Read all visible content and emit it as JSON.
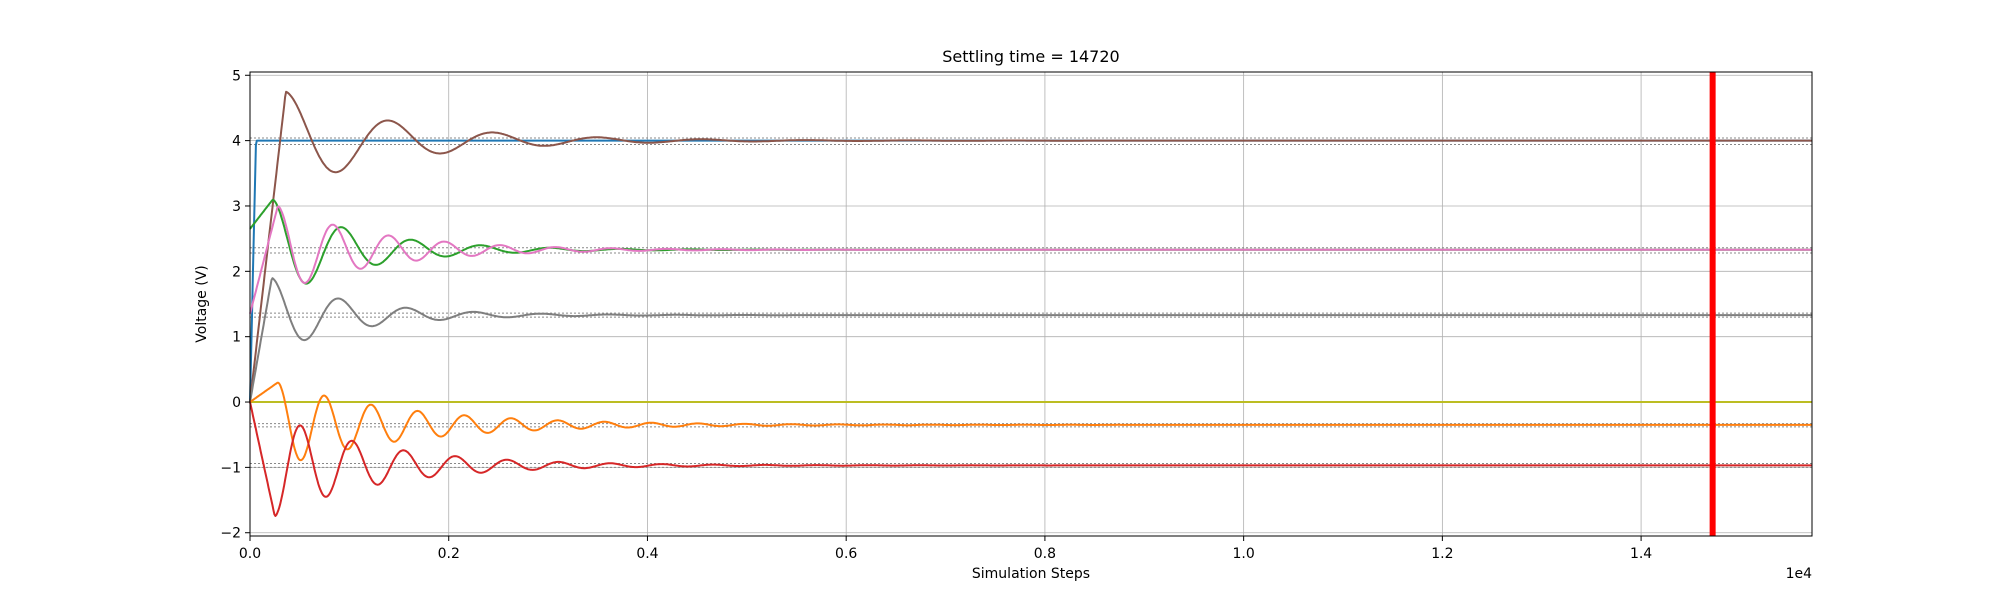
{
  "chart_data": {
    "type": "line",
    "title": "Settling time = 14720",
    "xlabel": "Simulation Steps",
    "ylabel": "Voltage (V)",
    "x_offset_label": "1e4",
    "xlim": [
      0,
      15720
    ],
    "ylim": [
      -2.05,
      5.05
    ],
    "x_ticks": [
      0,
      2000,
      4000,
      6000,
      8000,
      10000,
      12000,
      14000
    ],
    "x_tick_labels": [
      "0.0",
      "0.2",
      "0.4",
      "0.6",
      "0.8",
      "1.0",
      "1.2",
      "1.4"
    ],
    "y_ticks": [
      -2,
      -1,
      0,
      1,
      2,
      3,
      4,
      5
    ],
    "y_tick_labels": [
      "−2",
      "−1",
      "0",
      "1",
      "2",
      "3",
      "4",
      "5"
    ],
    "grid": true,
    "settling_time": 14720,
    "settling_line_color": "#ff0000",
    "series": [
      {
        "color": "#1f77b4",
        "initial": 0,
        "rise_end": 60,
        "final": 4.0,
        "kind": "step"
      },
      {
        "color": "#8c564b",
        "initial": 0,
        "final": 4.0,
        "peak": 4.75,
        "peak_time": 360,
        "period": 1050,
        "decay": 3500
      },
      {
        "color": "#2ca02c",
        "initial": 2.65,
        "final": 2.33,
        "peak": 3.1,
        "peak_time": 230,
        "period": 700,
        "decay": 2600
      },
      {
        "color": "#e377c2",
        "initial": 1.35,
        "final": 2.33,
        "peak": 3.0,
        "peak_time": 280,
        "period": 560,
        "decay": 3000
      },
      {
        "color": "#7f7f7f",
        "initial": 0,
        "final": 1.33,
        "peak": 1.9,
        "peak_time": 220,
        "period": 680,
        "decay": 2500
      },
      {
        "color": "#17becf",
        "initial": 0,
        "final": 0.0,
        "kind": "flat"
      },
      {
        "color": "#bcbd22",
        "initial": 0,
        "final": 0.0,
        "kind": "flat"
      },
      {
        "color": "#ff7f0e",
        "initial": 0,
        "final": -0.35,
        "peak": 0.3,
        "peak_time": 280,
        "period": 470,
        "decay": 3800
      },
      {
        "color": "#d62728",
        "initial": 0,
        "final": -0.97,
        "peak": -1.75,
        "peak_time": 250,
        "period": 520,
        "decay": 3200
      }
    ],
    "reference_levels": [
      {
        "value": 4.04,
        "color": "#888888"
      },
      {
        "value": 3.94,
        "color": "#888888"
      },
      {
        "value": 2.36,
        "color": "#888888"
      },
      {
        "value": 2.28,
        "color": "#888888"
      },
      {
        "value": 1.36,
        "color": "#888888"
      },
      {
        "value": 1.3,
        "color": "#888888"
      },
      {
        "value": -0.33,
        "color": "#888888"
      },
      {
        "value": -0.38,
        "color": "#888888"
      },
      {
        "value": -0.94,
        "color": "#888888"
      },
      {
        "value": -1.0,
        "color": "#888888"
      }
    ]
  }
}
